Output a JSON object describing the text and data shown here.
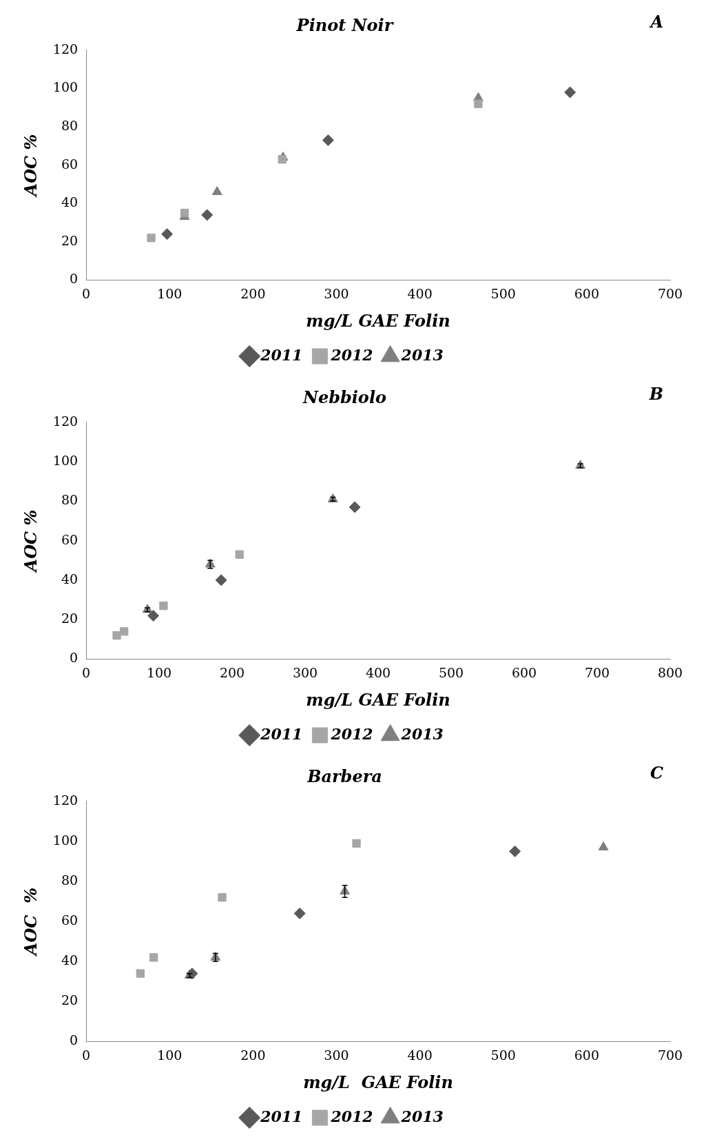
{
  "chart_data": [
    {
      "type": "scatter",
      "title": "Pinot Noir",
      "annotations": [
        "A"
      ],
      "xlabel": "mg/L GAE Folin",
      "ylabel": "AOC %",
      "xlim": [
        0,
        700
      ],
      "xticks": [
        0,
        100,
        200,
        300,
        400,
        500,
        600,
        700
      ],
      "ylim": [
        0,
        120
      ],
      "yticks": [
        0,
        20,
        40,
        60,
        80,
        100,
        120
      ],
      "legend": "bottom",
      "grid": false,
      "series": [
        {
          "name": "2011",
          "color": "#595959",
          "marker": "diamond",
          "x": [
            97,
            145,
            290,
            580
          ],
          "values": [
            24,
            34,
            73,
            98
          ]
        },
        {
          "name": "2012",
          "color": "#a6a6a6",
          "marker": "square",
          "x": [
            78,
            118,
            235,
            470
          ],
          "values": [
            22,
            35,
            63,
            92
          ]
        },
        {
          "name": "2013",
          "color": "#7f7f7f",
          "marker": "triangle",
          "x": [
            118,
            157,
            236,
            470
          ],
          "values": [
            33,
            46,
            64,
            95
          ]
        }
      ]
    },
    {
      "type": "scatter",
      "title": "Nebbiolo",
      "annotations": [
        "B"
      ],
      "xlabel": "mg/L GAE Folin",
      "ylabel": "AOC %",
      "xlim": [
        0,
        800
      ],
      "xticks": [
        0,
        100,
        200,
        300,
        400,
        500,
        600,
        700,
        800
      ],
      "ylim": [
        0,
        120
      ],
      "yticks": [
        0,
        20,
        40,
        60,
        80,
        100,
        120
      ],
      "legend": "bottom",
      "grid": false,
      "series": [
        {
          "name": "2011",
          "color": "#595959",
          "marker": "diamond",
          "x": [
            92,
            185,
            368
          ],
          "values": [
            22,
            40,
            77
          ]
        },
        {
          "name": "2012",
          "color": "#a6a6a6",
          "marker": "square",
          "x": [
            42,
            52,
            106,
            210
          ],
          "values": [
            12,
            14,
            27,
            53
          ]
        },
        {
          "name": "2013",
          "color": "#7f7f7f",
          "marker": "triangle",
          "x": [
            84,
            170,
            338,
            677
          ],
          "values": [
            25,
            48,
            81,
            98
          ],
          "errors": [
            1,
            2,
            1,
            1
          ]
        }
      ]
    },
    {
      "type": "scatter",
      "title": "Barbera",
      "annotations": [
        "C"
      ],
      "xlabel": "mg/L  GAE Folin",
      "ylabel": "AOC  %",
      "xlim": [
        0,
        700
      ],
      "xticks": [
        0,
        100,
        200,
        300,
        400,
        500,
        600,
        700
      ],
      "ylim": [
        0,
        120
      ],
      "yticks": [
        0,
        20,
        40,
        60,
        80,
        100,
        120
      ],
      "legend": "bottom",
      "grid": false,
      "series": [
        {
          "name": "2011",
          "color": "#595959",
          "marker": "diamond",
          "x": [
            127,
            256,
            514
          ],
          "values": [
            34,
            64,
            95
          ]
        },
        {
          "name": "2012",
          "color": "#a6a6a6",
          "marker": "square",
          "x": [
            65,
            81,
            163,
            324
          ],
          "values": [
            34,
            42,
            72,
            99
          ]
        },
        {
          "name": "2013",
          "color": "#7f7f7f",
          "marker": "triangle",
          "x": [
            124,
            155,
            310,
            620
          ],
          "values": [
            33,
            42,
            75,
            97
          ],
          "errors": [
            1,
            2,
            3,
            null
          ]
        }
      ]
    }
  ]
}
